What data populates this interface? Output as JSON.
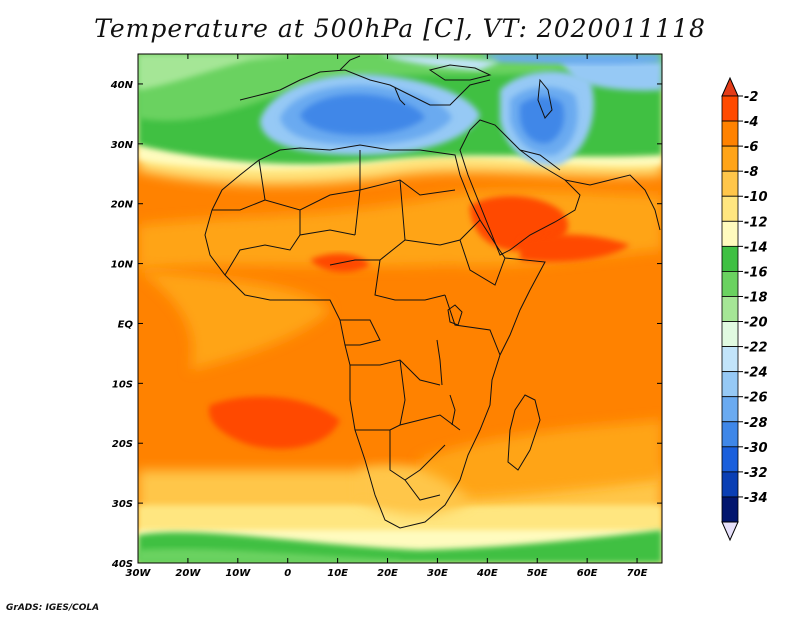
{
  "title": "Temperature at 500hPa [C], VT: 2020011118",
  "footer": "GrADS: IGES/COLA",
  "map": {
    "projection": "latlon",
    "lon_range": [
      -30,
      75
    ],
    "lat_range": [
      -40,
      45
    ],
    "lon_ticks": [
      {
        "value": -30,
        "label": "30W"
      },
      {
        "value": -20,
        "label": "20W"
      },
      {
        "value": -10,
        "label": "10W"
      },
      {
        "value": 0,
        "label": "0"
      },
      {
        "value": 10,
        "label": "10E"
      },
      {
        "value": 20,
        "label": "20E"
      },
      {
        "value": 30,
        "label": "30E"
      },
      {
        "value": 40,
        "label": "40E"
      },
      {
        "value": 50,
        "label": "50E"
      },
      {
        "value": 60,
        "label": "60E"
      },
      {
        "value": 70,
        "label": "70E"
      }
    ],
    "lat_ticks": [
      {
        "value": 40,
        "label": "40N"
      },
      {
        "value": 30,
        "label": "30N"
      },
      {
        "value": 20,
        "label": "20N"
      },
      {
        "value": 10,
        "label": "10N"
      },
      {
        "value": 0,
        "label": "EQ"
      },
      {
        "value": -10,
        "label": "10S"
      },
      {
        "value": -20,
        "label": "20S"
      },
      {
        "value": -30,
        "label": "30S"
      },
      {
        "value": -40,
        "label": "40S"
      }
    ]
  },
  "colorbar": {
    "levels": [
      {
        "label": "-2",
        "color": "#ff4a00"
      },
      {
        "label": "-4",
        "color": "#ff8200"
      },
      {
        "label": "-6",
        "color": "#ffa418"
      },
      {
        "label": "-8",
        "color": "#ffc64a"
      },
      {
        "label": "-10",
        "color": "#ffe680"
      },
      {
        "label": "-12",
        "color": "#fffbbe"
      },
      {
        "label": "-14",
        "color": "#3fc043"
      },
      {
        "label": "-16",
        "color": "#6ad260"
      },
      {
        "label": "-18",
        "color": "#a5e696"
      },
      {
        "label": "-20",
        "color": "#e1fae1"
      },
      {
        "label": "-22",
        "color": "#c2e4fa"
      },
      {
        "label": "-24",
        "color": "#96c9f5"
      },
      {
        "label": "-26",
        "color": "#6aaaf0"
      },
      {
        "label": "-28",
        "color": "#3f87e8"
      },
      {
        "label": "-30",
        "color": "#1a5fdc"
      },
      {
        "label": "-32",
        "color": "#0a3fb4"
      },
      {
        "label": "-34",
        "color": "#02166e"
      }
    ],
    "top_color": "#e43c18",
    "bottom_color": "#e6e0fa"
  }
}
